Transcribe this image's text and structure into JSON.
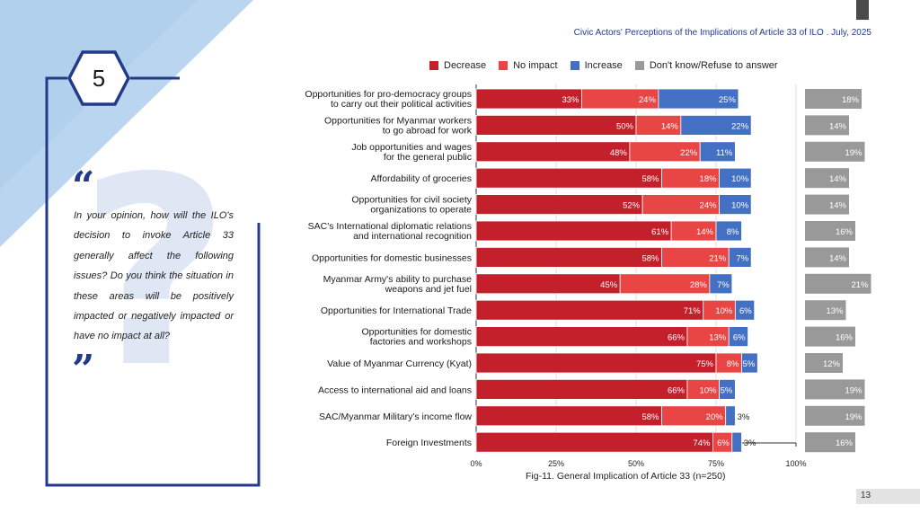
{
  "header": {
    "title": "Civic Actors' Perceptions of the Implications of Article 33 of ILO . July, 2025"
  },
  "section_number": "5",
  "question": {
    "open_quote_icon": "open-quote-icon",
    "text": "In your opinion, how will the ILO's decision to invoke Article 33 generally affect the following issues? Do you think the situation in these areas will be positively impacted or negatively impacted or have no impact at all?",
    "close_quote_icon": "close-quote-icon"
  },
  "page_number": "13",
  "colors": {
    "decrease": "#c4202b",
    "no_impact": "#e84545",
    "increase": "#4470c4",
    "dont_know": "#999999",
    "accent": "#233a8a"
  },
  "chart_data": {
    "type": "bar",
    "orientation": "horizontal",
    "stacked": true,
    "caption": "Fig-11. General Implication of Article 33 (n=250)",
    "legend_position": "top",
    "xlim": [
      0,
      100
    ],
    "xticks": [
      "0%",
      "25%",
      "50%",
      "75%",
      "100%"
    ],
    "categories": [
      [
        "Opportunities for pro-democracy groups",
        "to carry out their political activities"
      ],
      [
        "Opportunities for Myanmar workers",
        "to go abroad for work"
      ],
      [
        "Job opportunities and wages",
        "for the general public"
      ],
      [
        "Affordability of groceries"
      ],
      [
        "Opportunities for civil society",
        "organizations to operate"
      ],
      [
        "SAC's International diplomatic relations",
        "and international recognition"
      ],
      [
        "Opportunities for domestic businesses"
      ],
      [
        "Myanmar Army's ability to purchase",
        "weapons and jet fuel"
      ],
      [
        "Opportunities for International Trade"
      ],
      [
        "Opportunities for domestic",
        "factories and workshops"
      ],
      [
        "Value of Myanmar Currency (Kyat)"
      ],
      [
        "Access to international aid and loans"
      ],
      [
        "SAC/Myanmar Military's income flow"
      ],
      [
        "Foreign Investments"
      ]
    ],
    "series": [
      {
        "name": "Decrease",
        "color": "#c4202b",
        "values": [
          33,
          50,
          48,
          58,
          52,
          61,
          58,
          45,
          71,
          66,
          75,
          66,
          58,
          74
        ],
        "labels": [
          "33%",
          "50%",
          "48%",
          "58%",
          "52%",
          "61%",
          "58%",
          "45%",
          "71%",
          "66%",
          "75%",
          "66%",
          "58%",
          "74%"
        ]
      },
      {
        "name": "No impact",
        "color": "#e84545",
        "values": [
          24,
          14,
          22,
          18,
          24,
          14,
          21,
          28,
          10,
          13,
          8,
          10,
          20,
          6
        ],
        "labels": [
          "24%",
          "14%",
          "22%",
          "18%",
          "24%",
          "14%",
          "21%",
          "28%",
          "10%",
          "13%",
          "8%",
          "10%",
          "20%",
          "6%"
        ]
      },
      {
        "name": "Increase",
        "color": "#4470c4",
        "values": [
          25,
          22,
          11,
          10,
          10,
          8,
          7,
          7,
          6,
          6,
          5,
          5,
          3,
          3
        ],
        "labels": [
          "25%",
          "22%",
          "11%",
          "10%",
          "10%",
          "8%",
          "7%",
          "7%",
          "6%",
          "6%",
          "5%",
          "5%",
          "3%",
          "3%"
        ]
      },
      {
        "name": "Don't know/Refuse to answer",
        "color": "#999999",
        "values": [
          18,
          14,
          19,
          14,
          14,
          16,
          14,
          21,
          13,
          16,
          12,
          19,
          19,
          16
        ],
        "labels": [
          "18%",
          "14%",
          "19%",
          "14%",
          "14%",
          "16%",
          "14%",
          "21%",
          "13%",
          "16%",
          "12%",
          "19%",
          "19%",
          "16%"
        ]
      }
    ]
  }
}
